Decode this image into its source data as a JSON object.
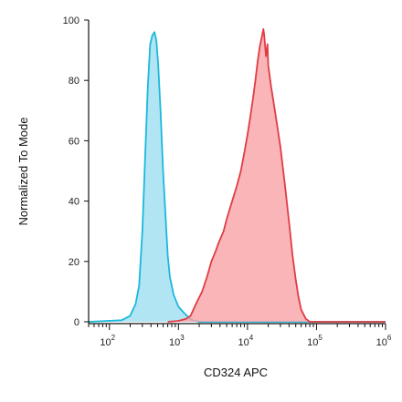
{
  "chart_data": {
    "type": "area",
    "title": "",
    "xlabel": "CD324 APC",
    "ylabel": "Normalized To Mode",
    "x_scale": "log",
    "xlim": [
      50,
      1000000
    ],
    "ylim": [
      0,
      100
    ],
    "x_ticks": [
      {
        "value": 100,
        "base": "10",
        "exp": "2"
      },
      {
        "value": 1000,
        "base": "10",
        "exp": "3"
      },
      {
        "value": 10000,
        "base": "10",
        "exp": "4"
      },
      {
        "value": 100000,
        "base": "10",
        "exp": "5"
      },
      {
        "value": 1000000,
        "base": "10",
        "exp": "6"
      }
    ],
    "y_ticks": [
      0,
      20,
      40,
      60,
      80,
      100
    ],
    "grid": false,
    "series": [
      {
        "color_stroke": "#1ab8dc",
        "color_fill": "#a4e0f2",
        "points": [
          [
            50,
            0
          ],
          [
            150,
            0.5
          ],
          [
            200,
            2
          ],
          [
            240,
            6
          ],
          [
            270,
            12
          ],
          [
            300,
            30
          ],
          [
            330,
            55
          ],
          [
            360,
            78
          ],
          [
            390,
            92
          ],
          [
            420,
            95
          ],
          [
            450,
            96
          ],
          [
            480,
            93
          ],
          [
            510,
            85
          ],
          [
            550,
            70
          ],
          [
            600,
            50
          ],
          [
            650,
            35
          ],
          [
            700,
            22
          ],
          [
            750,
            15
          ],
          [
            850,
            9
          ],
          [
            1000,
            5
          ],
          [
            1200,
            3
          ],
          [
            1400,
            1.5
          ],
          [
            1600,
            0.5
          ],
          [
            2000,
            0
          ],
          [
            1000000,
            0
          ]
        ]
      },
      {
        "color_stroke": "#e03c44",
        "color_fill": "#f7a3a6",
        "points": [
          [
            700,
            0
          ],
          [
            1000,
            0.3
          ],
          [
            1300,
            1
          ],
          [
            1500,
            2
          ],
          [
            1800,
            6
          ],
          [
            2200,
            10
          ],
          [
            2600,
            15
          ],
          [
            3000,
            20
          ],
          [
            3400,
            23
          ],
          [
            3800,
            26
          ],
          [
            4500,
            30
          ],
          [
            5000,
            34
          ],
          [
            6000,
            40
          ],
          [
            7000,
            45
          ],
          [
            8000,
            50
          ],
          [
            9000,
            56
          ],
          [
            10000,
            62
          ],
          [
            11000,
            68
          ],
          [
            12000,
            74
          ],
          [
            13000,
            80
          ],
          [
            14000,
            86
          ],
          [
            15000,
            91
          ],
          [
            16000,
            94
          ],
          [
            17000,
            97
          ],
          [
            17500,
            95
          ],
          [
            18500,
            88
          ],
          [
            19500,
            92
          ],
          [
            20000,
            85
          ],
          [
            22000,
            78
          ],
          [
            25000,
            70
          ],
          [
            30000,
            58
          ],
          [
            35000,
            45
          ],
          [
            40000,
            33
          ],
          [
            45000,
            22
          ],
          [
            50000,
            14
          ],
          [
            55000,
            8
          ],
          [
            60000,
            4
          ],
          [
            70000,
            1
          ],
          [
            80000,
            0
          ],
          [
            1000000,
            0
          ]
        ]
      }
    ]
  }
}
